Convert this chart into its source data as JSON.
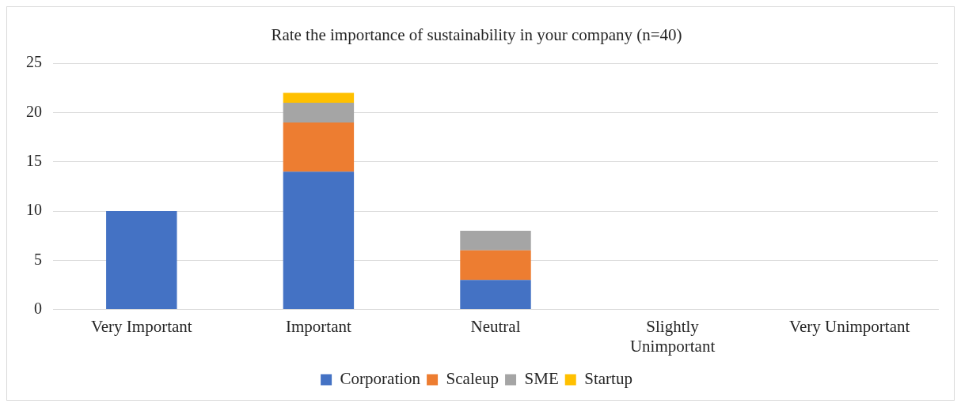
{
  "chart_data": {
    "type": "bar",
    "title": "Rate the importance of sustainability in your company (n=40)",
    "categories": [
      "Very Important",
      "Important",
      "Neutral",
      "Slightly Unimportant",
      "Very Unimportant"
    ],
    "stacked": true,
    "ylim": [
      0,
      25
    ],
    "yticks": [
      0,
      5,
      10,
      15,
      20,
      25
    ],
    "grid": "y",
    "legend": "bottom",
    "series": [
      {
        "name": "Corporation",
        "color": "#4472c4",
        "values": [
          10,
          14,
          3,
          0,
          0
        ]
      },
      {
        "name": "Scaleup",
        "color": "#ed7d31",
        "values": [
          0,
          5,
          3,
          0,
          0
        ]
      },
      {
        "name": "SME",
        "color": "#a5a5a5",
        "values": [
          0,
          2,
          2,
          0,
          0
        ]
      },
      {
        "name": "Startup",
        "color": "#ffc000",
        "values": [
          0,
          1,
          0,
          0,
          0
        ]
      }
    ]
  }
}
